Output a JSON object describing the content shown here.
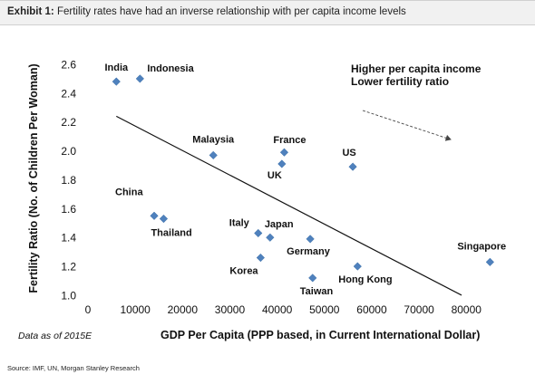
{
  "header": {
    "exhibit_label": "Exhibit 1:",
    "title": "Fertility rates have had an inverse relationship with per capita income levels"
  },
  "source": "Source: IMF, UN, Morgan Stanley Research",
  "chart_data": {
    "type": "scatter",
    "title": "",
    "xlabel": "GDP Per Capita (PPP based, in Current International Dollar)",
    "ylabel": "Fertility Ratio (No. of Children Per Woman)",
    "xlim": [
      0,
      88000
    ],
    "ylim": [
      1.0,
      2.65
    ],
    "x_ticks": [
      0,
      10000,
      20000,
      30000,
      40000,
      50000,
      60000,
      70000,
      80000
    ],
    "x_tick_labels": [
      "0",
      "10000",
      "20000",
      "30000",
      "40000",
      "50000",
      "60000",
      "70000",
      "80000"
    ],
    "y_ticks": [
      1.0,
      1.2,
      1.4,
      1.6,
      1.8,
      2.0,
      2.2,
      2.4,
      2.6
    ],
    "y_tick_labels": [
      "1.0",
      "1.2",
      "1.4",
      "1.6",
      "1.8",
      "2.0",
      "2.2",
      "2.4",
      "2.6"
    ],
    "grid": false,
    "marker_color": "#4f81bd",
    "points": [
      {
        "label": "India",
        "x": 6000,
        "y": 2.48
      },
      {
        "label": "Indonesia",
        "x": 11000,
        "y": 2.5
      },
      {
        "label": "Malaysia",
        "x": 26500,
        "y": 1.97
      },
      {
        "label": "France",
        "x": 41500,
        "y": 1.99
      },
      {
        "label": "UK",
        "x": 41000,
        "y": 1.91
      },
      {
        "label": "US",
        "x": 56000,
        "y": 1.89
      },
      {
        "label": "China",
        "x": 14000,
        "y": 1.55
      },
      {
        "label": "Thailand",
        "x": 16000,
        "y": 1.53
      },
      {
        "label": "Italy",
        "x": 36000,
        "y": 1.43
      },
      {
        "label": "Japan",
        "x": 38500,
        "y": 1.4
      },
      {
        "label": "Germany",
        "x": 47000,
        "y": 1.39
      },
      {
        "label": "Korea",
        "x": 36500,
        "y": 1.26
      },
      {
        "label": "Taiwan",
        "x": 47500,
        "y": 1.12
      },
      {
        "label": "Hong Kong",
        "x": 57000,
        "y": 1.2
      },
      {
        "label": "Singapore",
        "x": 85000,
        "y": 1.23
      }
    ],
    "trend_line": {
      "x": [
        6000,
        79000
      ],
      "y": [
        2.24,
        1.0
      ]
    },
    "annotations": {
      "line1": "Higher  per capita income",
      "line2": "Lower fertility ratio",
      "footnote": "Data as of 2015E"
    }
  }
}
